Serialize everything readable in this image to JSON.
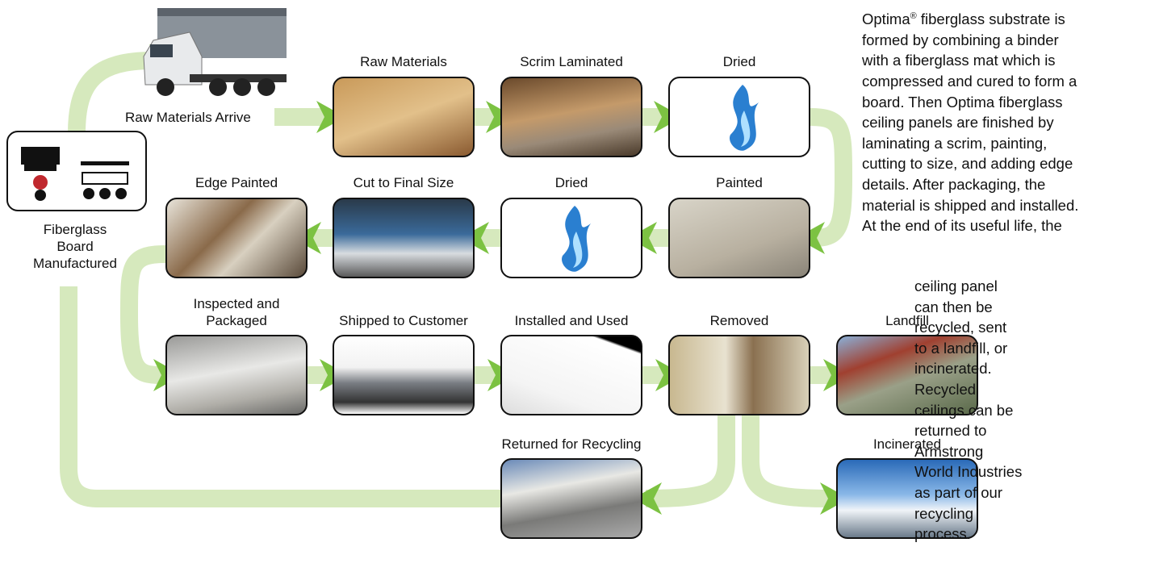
{
  "fiberglass_board": {
    "lines": [
      "Fiberglass",
      "Board",
      "Manufactured"
    ]
  },
  "steps": [
    {
      "label": "Raw Materials Arrive"
    },
    {
      "label": "Raw Materials"
    },
    {
      "label": "Scrim Laminated"
    },
    {
      "label": "Dried"
    },
    {
      "label": "Painted"
    },
    {
      "label": "Dried"
    },
    {
      "label": "Cut to Final Size"
    },
    {
      "label": "Edge Painted"
    },
    {
      "label": [
        "Inspected and",
        "Packaged"
      ]
    },
    {
      "label": "Shipped to Customer"
    },
    {
      "label": "Installed and Used"
    },
    {
      "label": "Removed"
    },
    {
      "label": "Landfill"
    },
    {
      "label": "Incinerated"
    },
    {
      "label": "Returned for Recycling"
    }
  ],
  "description": {
    "first_line": {
      "brand": "Optima",
      "mark": "®",
      "rest": "fiberglass substrate is"
    },
    "wide_lines": [
      "formed by combining a binder",
      "with a fiberglass mat which is",
      "compressed and cured to form a",
      "board. Then Optima fiberglass",
      "ceiling panels are finished by",
      "laminating a scrim, painting,",
      "cutting to size, and adding edge",
      "details. After packaging, the",
      "material is shipped and installed.",
      "At the end of its useful life, the"
    ],
    "narrow_lines": [
      "ceiling panel",
      "can then be",
      "recycled, sent",
      "to a landfill, or",
      "incinerated.",
      "Recycled",
      "ceilings can be",
      "returned to",
      "Armstrong",
      "World Industries",
      "as part of our",
      "recycling",
      "process."
    ]
  }
}
